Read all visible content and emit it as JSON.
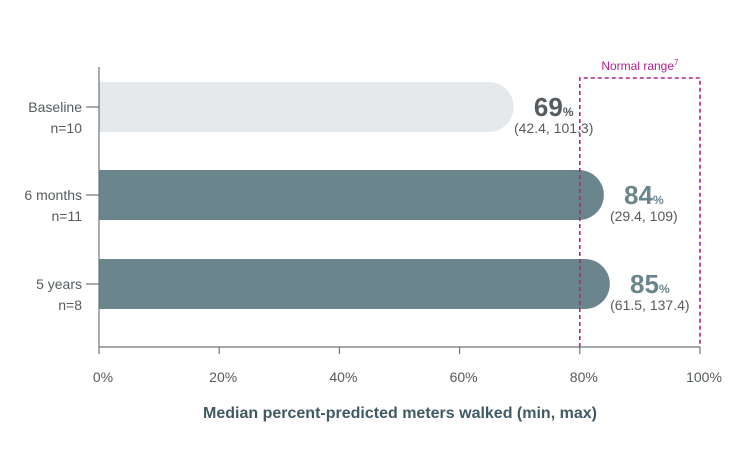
{
  "chart_data": {
    "type": "bar",
    "orientation": "horizontal",
    "xlabel": "Median percent-predicted meters walked (min, max)",
    "xlim": [
      0,
      100
    ],
    "x_ticks": [
      "0%",
      "20%",
      "40%",
      "60%",
      "80%",
      "100%"
    ],
    "categories": [
      {
        "label": "Baseline",
        "n": "n=10"
      },
      {
        "label": "6 months",
        "n": "n=11"
      },
      {
        "label": "5 years",
        "n": "n=8"
      }
    ],
    "values": [
      69,
      84,
      85
    ],
    "value_unit": "%",
    "ranges": [
      "(42.4, 101.3)",
      "(29.4, 109)",
      "(61.5, 137.4)"
    ],
    "normal_range": {
      "label": "Normal range",
      "superscript": "7",
      "min": 80,
      "max": 100
    },
    "colors": {
      "baseline_bar": "#e6e9eb",
      "followup_bar": "#6a868c",
      "baseline_value": "#555b5e",
      "followup_value": "#6a868c",
      "normal_range": "#b0228c",
      "axis": "#6e7477"
    },
    "grid": false
  }
}
